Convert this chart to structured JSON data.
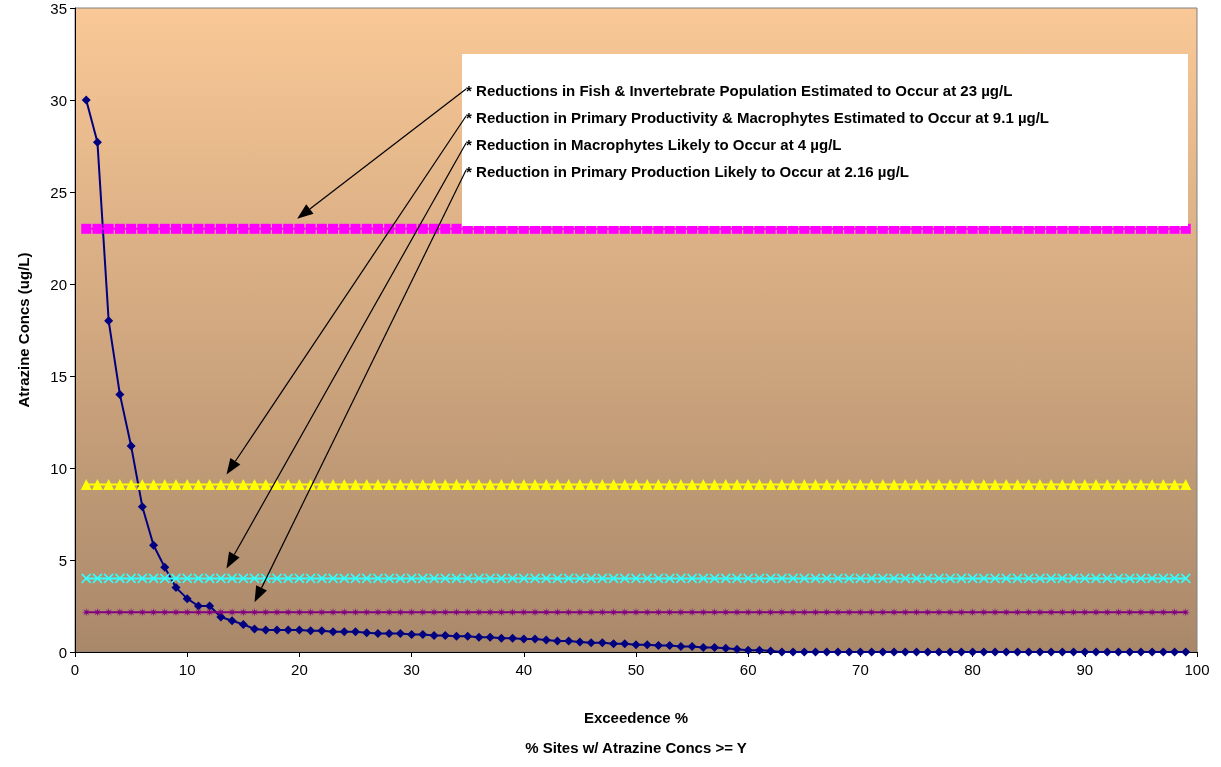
{
  "chart_data": {
    "type": "line",
    "xlabel": "Exceedence %\n% Sites w/ Atrazine Concs >= Y",
    "ylabel": "Atrazine Concs (ug/L)",
    "x": [
      1,
      2,
      3,
      4,
      5,
      6,
      7,
      8,
      9,
      10,
      11,
      12,
      13,
      14,
      15,
      16,
      17,
      18,
      19,
      20,
      21,
      22,
      23,
      24,
      25,
      26,
      27,
      28,
      29,
      30,
      31,
      32,
      33,
      34,
      35,
      36,
      37,
      38,
      39,
      40,
      41,
      42,
      43,
      44,
      45,
      46,
      47,
      48,
      49,
      50,
      51,
      52,
      53,
      54,
      55,
      56,
      57,
      58,
      59,
      60,
      61,
      62,
      63,
      64,
      65,
      66,
      67,
      68,
      69,
      70,
      71,
      72,
      73,
      74,
      75,
      76,
      77,
      78,
      79,
      80,
      81,
      82,
      83,
      84,
      85,
      86,
      87,
      88,
      89,
      90,
      91,
      92,
      93,
      94,
      95,
      96,
      97,
      98,
      99
    ],
    "series": [
      {
        "color": "#000080",
        "marker": "diamond",
        "values": [
          30,
          27.7,
          18,
          14,
          11.2,
          7.9,
          5.8,
          4.6,
          3.5,
          2.9,
          2.5,
          2.5,
          1.9,
          1.7,
          1.5,
          1.25,
          1.2,
          1.2,
          1.2,
          1.2,
          1.15,
          1.15,
          1.1,
          1.1,
          1.1,
          1.05,
          1,
          1,
          1,
          0.95,
          0.95,
          0.9,
          0.9,
          0.85,
          0.85,
          0.8,
          0.8,
          0.75,
          0.75,
          0.7,
          0.7,
          0.65,
          0.6,
          0.6,
          0.55,
          0.5,
          0.5,
          0.45,
          0.45,
          0.4,
          0.4,
          0.35,
          0.35,
          0.3,
          0.3,
          0.25,
          0.25,
          0.2,
          0.15,
          0.1,
          0.1,
          0.05,
          0,
          0,
          0,
          0,
          0,
          0,
          0,
          0,
          0,
          0,
          0,
          0,
          0,
          0,
          0,
          0,
          0,
          0,
          0,
          0,
          0,
          0,
          0,
          0,
          0,
          0,
          0,
          0,
          0,
          0,
          0,
          0,
          0,
          0,
          0,
          0,
          0
        ]
      },
      {
        "color": "#ff00ff",
        "marker": "square",
        "values": [
          23,
          23,
          23,
          23,
          23,
          23,
          23,
          23,
          23,
          23,
          23,
          23,
          23,
          23,
          23,
          23,
          23,
          23,
          23,
          23,
          23,
          23,
          23,
          23,
          23,
          23,
          23,
          23,
          23,
          23,
          23,
          23,
          23,
          23,
          23,
          23,
          23,
          23,
          23,
          23,
          23,
          23,
          23,
          23,
          23,
          23,
          23,
          23,
          23,
          23,
          23,
          23,
          23,
          23,
          23,
          23,
          23,
          23,
          23,
          23,
          23,
          23,
          23,
          23,
          23,
          23,
          23,
          23,
          23,
          23,
          23,
          23,
          23,
          23,
          23,
          23,
          23,
          23,
          23,
          23,
          23,
          23,
          23,
          23,
          23,
          23,
          23,
          23,
          23,
          23,
          23,
          23,
          23,
          23,
          23,
          23,
          23,
          23,
          23
        ]
      },
      {
        "color": "#ffff00",
        "marker": "triangle",
        "values": [
          9.1,
          9.1,
          9.1,
          9.1,
          9.1,
          9.1,
          9.1,
          9.1,
          9.1,
          9.1,
          9.1,
          9.1,
          9.1,
          9.1,
          9.1,
          9.1,
          9.1,
          9.1,
          9.1,
          9.1,
          9.1,
          9.1,
          9.1,
          9.1,
          9.1,
          9.1,
          9.1,
          9.1,
          9.1,
          9.1,
          9.1,
          9.1,
          9.1,
          9.1,
          9.1,
          9.1,
          9.1,
          9.1,
          9.1,
          9.1,
          9.1,
          9.1,
          9.1,
          9.1,
          9.1,
          9.1,
          9.1,
          9.1,
          9.1,
          9.1,
          9.1,
          9.1,
          9.1,
          9.1,
          9.1,
          9.1,
          9.1,
          9.1,
          9.1,
          9.1,
          9.1,
          9.1,
          9.1,
          9.1,
          9.1,
          9.1,
          9.1,
          9.1,
          9.1,
          9.1,
          9.1,
          9.1,
          9.1,
          9.1,
          9.1,
          9.1,
          9.1,
          9.1,
          9.1,
          9.1,
          9.1,
          9.1,
          9.1,
          9.1,
          9.1,
          9.1,
          9.1,
          9.1,
          9.1,
          9.1,
          9.1,
          9.1,
          9.1,
          9.1,
          9.1,
          9.1,
          9.1,
          9.1,
          9.1
        ]
      },
      {
        "color": "#33ffff",
        "marker": "cross",
        "values": [
          4,
          4,
          4,
          4,
          4,
          4,
          4,
          4,
          4,
          4,
          4,
          4,
          4,
          4,
          4,
          4,
          4,
          4,
          4,
          4,
          4,
          4,
          4,
          4,
          4,
          4,
          4,
          4,
          4,
          4,
          4,
          4,
          4,
          4,
          4,
          4,
          4,
          4,
          4,
          4,
          4,
          4,
          4,
          4,
          4,
          4,
          4,
          4,
          4,
          4,
          4,
          4,
          4,
          4,
          4,
          4,
          4,
          4,
          4,
          4,
          4,
          4,
          4,
          4,
          4,
          4,
          4,
          4,
          4,
          4,
          4,
          4,
          4,
          4,
          4,
          4,
          4,
          4,
          4,
          4,
          4,
          4,
          4,
          4,
          4,
          4,
          4,
          4,
          4,
          4,
          4,
          4,
          4,
          4,
          4,
          4,
          4,
          4,
          4
        ]
      },
      {
        "color": "#800080",
        "marker": "star",
        "values": [
          2.16,
          2.16,
          2.16,
          2.16,
          2.16,
          2.16,
          2.16,
          2.16,
          2.16,
          2.16,
          2.16,
          2.16,
          2.16,
          2.16,
          2.16,
          2.16,
          2.16,
          2.16,
          2.16,
          2.16,
          2.16,
          2.16,
          2.16,
          2.16,
          2.16,
          2.16,
          2.16,
          2.16,
          2.16,
          2.16,
          2.16,
          2.16,
          2.16,
          2.16,
          2.16,
          2.16,
          2.16,
          2.16,
          2.16,
          2.16,
          2.16,
          2.16,
          2.16,
          2.16,
          2.16,
          2.16,
          2.16,
          2.16,
          2.16,
          2.16,
          2.16,
          2.16,
          2.16,
          2.16,
          2.16,
          2.16,
          2.16,
          2.16,
          2.16,
          2.16,
          2.16,
          2.16,
          2.16,
          2.16,
          2.16,
          2.16,
          2.16,
          2.16,
          2.16,
          2.16,
          2.16,
          2.16,
          2.16,
          2.16,
          2.16,
          2.16,
          2.16,
          2.16,
          2.16,
          2.16,
          2.16,
          2.16,
          2.16,
          2.16,
          2.16,
          2.16,
          2.16,
          2.16,
          2.16,
          2.16,
          2.16,
          2.16,
          2.16,
          2.16,
          2.16,
          2.16,
          2.16,
          2.16,
          2.16
        ]
      }
    ],
    "xlim": [
      0,
      100
    ],
    "xticks": [
      0,
      10,
      20,
      30,
      40,
      50,
      60,
      70,
      80,
      90,
      100
    ],
    "ylim": [
      0,
      35
    ],
    "yticks": [
      0,
      5,
      10,
      15,
      20,
      25,
      30,
      35
    ],
    "grid": false,
    "annotations": [
      "* Reductions in Fish & Invertebrate Population Estimated to Occur at 23 µg/L",
      "* Reduction in Primary Productivity & Macrophytes Estimated to Occur at 9.1 µg/L",
      "* Reduction in Macrophytes Likely to Occur at 4 µg/L",
      "* Reduction in Primary Production Likely to Occur at 2.16 µg/L"
    ]
  }
}
